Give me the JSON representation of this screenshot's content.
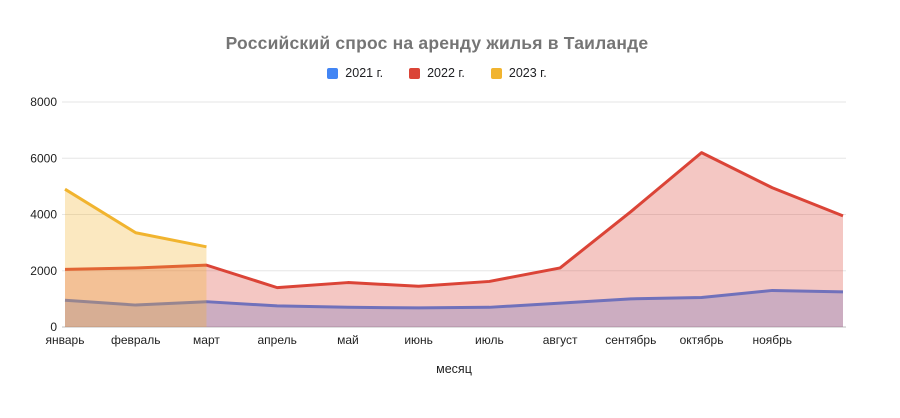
{
  "chart_data": {
    "type": "area",
    "title": "Российский спрос на аренду жилья в Таиланде",
    "xlabel": "месяц",
    "ylabel": "",
    "x_tick_labels": [
      "январь",
      "февраль",
      "март",
      "апрель",
      "май",
      "июнь",
      "июль",
      "август",
      "сентябрь",
      "октябрь",
      "ноябрь"
    ],
    "num_points": 12,
    "ylim": [
      0,
      8000
    ],
    "yticks": [
      0,
      2000,
      4000,
      6000,
      8000
    ],
    "grid": true,
    "legend_position": "top",
    "fill_opacity_note": "translucent area fills over white",
    "series": [
      {
        "name": "2021 г.",
        "color": "#4285F4",
        "values": [
          950,
          780,
          900,
          750,
          700,
          680,
          700,
          850,
          1000,
          1050,
          1300,
          1250
        ]
      },
      {
        "name": "2022 г.",
        "color": "#DB4437",
        "values": [
          2050,
          2100,
          2200,
          1400,
          1580,
          1450,
          1620,
          2100,
          4100,
          6200,
          4950,
          3950
        ]
      },
      {
        "name": "2023 г.",
        "color": "#F1B42F",
        "values": [
          4900,
          3350,
          2850,
          null,
          null,
          null,
          null,
          null,
          null,
          null,
          null,
          null
        ]
      }
    ],
    "colors": {
      "gridline": "#E6E6E6",
      "baseline": "#BDBDBD",
      "tick_text": "#1F1F1F",
      "title_text": "#757575"
    }
  }
}
